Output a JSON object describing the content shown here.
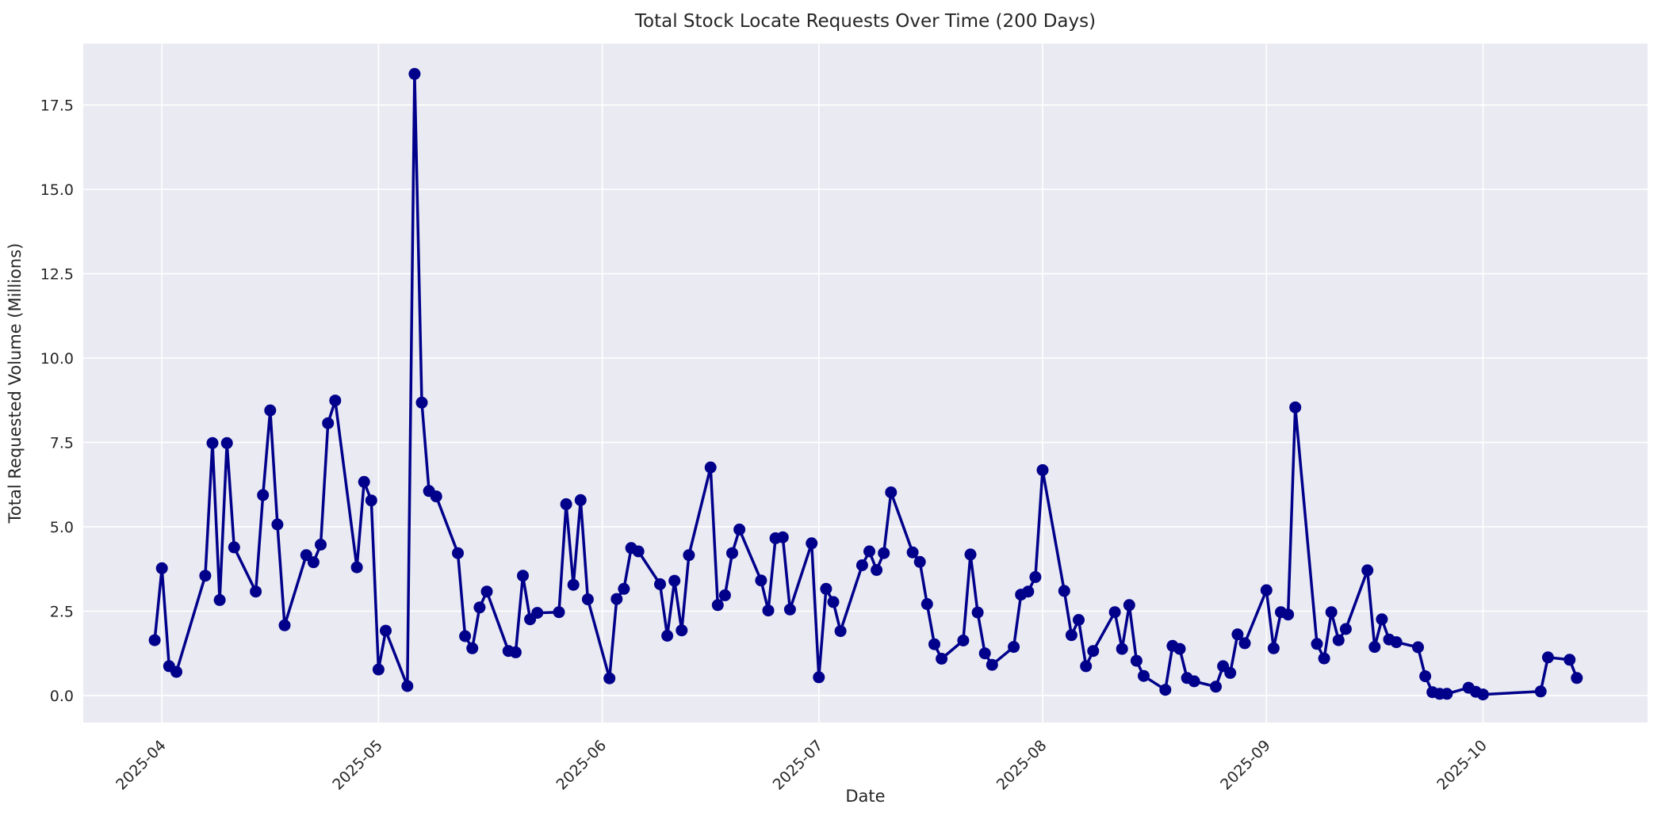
{
  "chart_data": {
    "type": "line",
    "title": "Total Stock Locate Requests Over Time (200 Days)",
    "xlabel": "Date",
    "ylabel": "Total Requested Volume (Millions)",
    "x_tick_labels": [
      "2025-04",
      "2025-05",
      "2025-06",
      "2025-07",
      "2025-08",
      "2025-09",
      "2025-10"
    ],
    "x_tick_day_offsets_from_2025_04_01": [
      0,
      30,
      61,
      91,
      122,
      153,
      183
    ],
    "y_ticks": [
      0.0,
      2.5,
      5.0,
      7.5,
      10.0,
      12.5,
      15.0,
      17.5
    ],
    "xlim_day_offsets": [
      -10.9,
      205.8
    ],
    "ylim": [
      -0.8,
      19.32
    ],
    "grid": true,
    "legend_position": "none",
    "line_color": "#00008b",
    "marker": "circle",
    "plot_background": "#eaeaf2",
    "grid_color": "#ffffff",
    "text_color": "#262626",
    "series": [
      {
        "name": "total_requested_volume_millions",
        "points": [
          [
            "2025-03-31",
            1.64
          ],
          [
            "2025-04-01",
            3.77
          ],
          [
            "2025-04-02",
            0.87
          ],
          [
            "2025-04-03",
            0.7
          ],
          [
            "2025-04-07",
            3.55
          ],
          [
            "2025-04-08",
            7.48
          ],
          [
            "2025-04-09",
            2.83
          ],
          [
            "2025-04-10",
            7.48
          ],
          [
            "2025-04-11",
            4.39
          ],
          [
            "2025-04-14",
            3.08
          ],
          [
            "2025-04-15",
            5.94
          ],
          [
            "2025-04-16",
            8.45
          ],
          [
            "2025-04-17",
            5.07
          ],
          [
            "2025-04-18",
            2.08
          ],
          [
            "2025-04-21",
            4.16
          ],
          [
            "2025-04-22",
            3.95
          ],
          [
            "2025-04-23",
            4.47
          ],
          [
            "2025-04-24",
            8.07
          ],
          [
            "2025-04-25",
            8.74
          ],
          [
            "2025-04-28",
            3.8
          ],
          [
            "2025-04-29",
            6.33
          ],
          [
            "2025-04-30",
            5.78
          ],
          [
            "2025-05-01",
            0.77
          ],
          [
            "2025-05-02",
            1.92
          ],
          [
            "2025-05-05",
            0.28
          ],
          [
            "2025-05-06",
            18.42
          ],
          [
            "2025-05-07",
            8.68
          ],
          [
            "2025-05-08",
            6.06
          ],
          [
            "2025-05-09",
            5.9
          ],
          [
            "2025-05-12",
            4.22
          ],
          [
            "2025-05-13",
            1.76
          ],
          [
            "2025-05-14",
            1.4
          ],
          [
            "2025-05-15",
            2.61
          ],
          [
            "2025-05-16",
            3.08
          ],
          [
            "2025-05-19",
            1.32
          ],
          [
            "2025-05-20",
            1.28
          ],
          [
            "2025-05-21",
            3.55
          ],
          [
            "2025-05-22",
            2.26
          ],
          [
            "2025-05-23",
            2.45
          ],
          [
            "2025-05-26",
            2.47
          ],
          [
            "2025-05-27",
            5.67
          ],
          [
            "2025-05-28",
            3.28
          ],
          [
            "2025-05-29",
            5.79
          ],
          [
            "2025-05-30",
            2.85
          ],
          [
            "2025-06-02",
            0.51
          ],
          [
            "2025-06-03",
            2.86
          ],
          [
            "2025-06-04",
            3.16
          ],
          [
            "2025-06-05",
            4.37
          ],
          [
            "2025-06-06",
            4.27
          ],
          [
            "2025-06-09",
            3.3
          ],
          [
            "2025-06-10",
            1.77
          ],
          [
            "2025-06-11",
            3.4
          ],
          [
            "2025-06-12",
            1.93
          ],
          [
            "2025-06-13",
            4.16
          ],
          [
            "2025-06-16",
            6.76
          ],
          [
            "2025-06-17",
            2.68
          ],
          [
            "2025-06-18",
            2.97
          ],
          [
            "2025-06-19",
            4.22
          ],
          [
            "2025-06-20",
            4.92
          ],
          [
            "2025-06-23",
            3.41
          ],
          [
            "2025-06-24",
            2.52
          ],
          [
            "2025-06-25",
            4.66
          ],
          [
            "2025-06-26",
            4.69
          ],
          [
            "2025-06-27",
            2.55
          ],
          [
            "2025-06-30",
            4.51
          ],
          [
            "2025-07-01",
            0.54
          ],
          [
            "2025-07-02",
            3.16
          ],
          [
            "2025-07-03",
            2.77
          ],
          [
            "2025-07-04",
            1.91
          ],
          [
            "2025-07-07",
            3.86
          ],
          [
            "2025-07-08",
            4.27
          ],
          [
            "2025-07-09",
            3.72
          ],
          [
            "2025-07-10",
            4.22
          ],
          [
            "2025-07-11",
            6.02
          ],
          [
            "2025-07-14",
            4.24
          ],
          [
            "2025-07-15",
            3.96
          ],
          [
            "2025-07-16",
            2.71
          ],
          [
            "2025-07-17",
            1.52
          ],
          [
            "2025-07-18",
            1.09
          ],
          [
            "2025-07-21",
            1.63
          ],
          [
            "2025-07-22",
            4.18
          ],
          [
            "2025-07-23",
            2.46
          ],
          [
            "2025-07-24",
            1.25
          ],
          [
            "2025-07-25",
            0.91
          ],
          [
            "2025-07-28",
            1.44
          ],
          [
            "2025-07-29",
            2.99
          ],
          [
            "2025-07-30",
            3.08
          ],
          [
            "2025-07-31",
            3.51
          ],
          [
            "2025-08-01",
            6.68
          ],
          [
            "2025-08-04",
            3.1
          ],
          [
            "2025-08-05",
            1.79
          ],
          [
            "2025-08-06",
            2.24
          ],
          [
            "2025-08-07",
            0.87
          ],
          [
            "2025-08-08",
            1.32
          ],
          [
            "2025-08-11",
            2.47
          ],
          [
            "2025-08-12",
            1.38
          ],
          [
            "2025-08-13",
            2.68
          ],
          [
            "2025-08-14",
            1.03
          ],
          [
            "2025-08-15",
            0.58
          ],
          [
            "2025-08-18",
            0.17
          ],
          [
            "2025-08-19",
            1.47
          ],
          [
            "2025-08-20",
            1.38
          ],
          [
            "2025-08-21",
            0.52
          ],
          [
            "2025-08-22",
            0.42
          ],
          [
            "2025-08-25",
            0.26
          ],
          [
            "2025-08-26",
            0.87
          ],
          [
            "2025-08-27",
            0.67
          ],
          [
            "2025-08-28",
            1.81
          ],
          [
            "2025-08-29",
            1.55
          ],
          [
            "2025-09-01",
            3.12
          ],
          [
            "2025-09-02",
            1.4
          ],
          [
            "2025-09-03",
            2.47
          ],
          [
            "2025-09-04",
            2.4
          ],
          [
            "2025-09-05",
            8.54
          ],
          [
            "2025-09-08",
            1.53
          ],
          [
            "2025-09-09",
            1.1
          ],
          [
            "2025-09-10",
            2.47
          ],
          [
            "2025-09-11",
            1.64
          ],
          [
            "2025-09-12",
            1.97
          ],
          [
            "2025-09-15",
            3.71
          ],
          [
            "2025-09-16",
            1.44
          ],
          [
            "2025-09-17",
            2.26
          ],
          [
            "2025-09-18",
            1.66
          ],
          [
            "2025-09-19",
            1.58
          ],
          [
            "2025-09-22",
            1.43
          ],
          [
            "2025-09-23",
            0.57
          ],
          [
            "2025-09-24",
            0.1
          ],
          [
            "2025-09-25",
            0.05
          ],
          [
            "2025-09-26",
            0.05
          ],
          [
            "2025-09-29",
            0.23
          ],
          [
            "2025-09-30",
            0.11
          ],
          [
            "2025-10-01",
            0.03
          ],
          [
            "2025-10-09",
            0.12
          ],
          [
            "2025-10-10",
            1.13
          ],
          [
            "2025-10-13",
            1.06
          ],
          [
            "2025-10-14",
            0.52
          ]
        ]
      }
    ]
  }
}
